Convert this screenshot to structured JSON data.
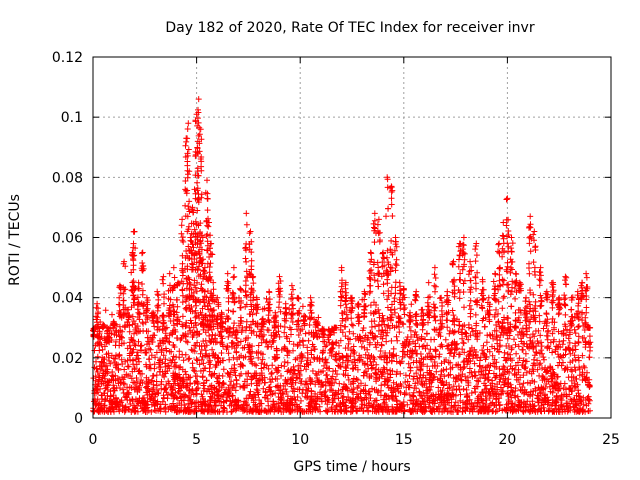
{
  "chart_data": {
    "type": "scatter",
    "title": "Day 182 of 2020, Rate Of TEC Index for receiver invr",
    "xlabel": "GPS time / hours",
    "ylabel": "ROTI / TECUs",
    "xlim": [
      0,
      25
    ],
    "ylim": [
      0,
      0.12
    ],
    "xticks": [
      0,
      5,
      10,
      15,
      20,
      25
    ],
    "xtick_labels": [
      "0",
      "5",
      "10",
      "15",
      "20",
      "25"
    ],
    "yticks": [
      0,
      0.02,
      0.04,
      0.06,
      0.08,
      0.1,
      0.12
    ],
    "ytick_labels": [
      "0",
      "0.02",
      "0.04",
      "0.06",
      "0.08",
      "0.1",
      "0.12"
    ],
    "grid": true,
    "marker": "+",
    "color": "#ff0000",
    "series": [
      {
        "name": "ROTI",
        "x": [
          0.05,
          0.2,
          0.3,
          0.5,
          0.7,
          1.0,
          1.3,
          1.5,
          1.7,
          1.9,
          2.0,
          2.2,
          2.4,
          2.6,
          2.9,
          3.1,
          3.4,
          3.7,
          3.9,
          4.1,
          4.3,
          4.5,
          4.6,
          4.7,
          4.8,
          4.9,
          5.0,
          5.1,
          5.2,
          5.3,
          5.4,
          5.5,
          5.6,
          5.7,
          5.8,
          6.0,
          6.2,
          6.5,
          6.8,
          7.1,
          7.4,
          7.6,
          7.7,
          7.9,
          8.2,
          8.5,
          8.8,
          9.0,
          9.3,
          9.6,
          9.9,
          10.2,
          10.5,
          10.8,
          11.1,
          11.4,
          11.7,
          12.0,
          12.2,
          12.5,
          12.8,
          13.1,
          13.4,
          13.6,
          13.8,
          14.0,
          14.2,
          14.4,
          14.6,
          14.8,
          15.0,
          15.3,
          15.6,
          15.9,
          16.2,
          16.5,
          16.8,
          17.1,
          17.4,
          17.7,
          17.9,
          18.2,
          18.5,
          18.8,
          19.1,
          19.4,
          19.6,
          19.8,
          20.0,
          20.2,
          20.4,
          20.6,
          20.9,
          21.1,
          21.3,
          21.6,
          21.9,
          22.2,
          22.5,
          22.8,
          23.1,
          23.4,
          23.6,
          23.8,
          23.95
        ],
        "y": [
          0.027,
          0.038,
          0.024,
          0.031,
          0.026,
          0.032,
          0.044,
          0.052,
          0.036,
          0.055,
          0.062,
          0.045,
          0.055,
          0.04,
          0.035,
          0.042,
          0.047,
          0.048,
          0.05,
          0.045,
          0.066,
          0.093,
          0.098,
          0.06,
          0.07,
          0.076,
          0.101,
          0.106,
          0.096,
          0.06,
          0.05,
          0.079,
          0.065,
          0.058,
          0.045,
          0.04,
          0.035,
          0.048,
          0.05,
          0.043,
          0.068,
          0.062,
          0.047,
          0.04,
          0.033,
          0.042,
          0.035,
          0.047,
          0.038,
          0.044,
          0.04,
          0.034,
          0.04,
          0.032,
          0.028,
          0.025,
          0.03,
          0.05,
          0.045,
          0.04,
          0.038,
          0.042,
          0.055,
          0.068,
          0.066,
          0.055,
          0.08,
          0.077,
          0.06,
          0.045,
          0.043,
          0.035,
          0.042,
          0.036,
          0.045,
          0.05,
          0.04,
          0.042,
          0.052,
          0.058,
          0.06,
          0.052,
          0.058,
          0.046,
          0.04,
          0.048,
          0.058,
          0.065,
          0.073,
          0.06,
          0.048,
          0.045,
          0.04,
          0.067,
          0.062,
          0.05,
          0.042,
          0.045,
          0.04,
          0.047,
          0.04,
          0.042,
          0.045,
          0.048,
          0.03
        ]
      }
    ],
    "noise_band": {
      "x_range": [
        0,
        24
      ],
      "base_min": 0.002,
      "base_max": 0.03
    }
  }
}
